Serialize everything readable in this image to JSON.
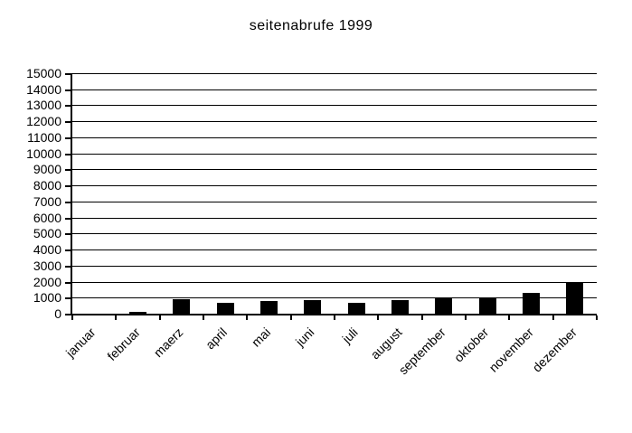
{
  "chart_data": {
    "type": "bar",
    "title": "seitenabrufe 1999",
    "categories": [
      "januar",
      "februar",
      "maerz",
      "april",
      "mai",
      "juni",
      "juli",
      "august",
      "september",
      "oktober",
      "november",
      "dezember"
    ],
    "values": [
      0,
      100,
      900,
      650,
      800,
      850,
      650,
      850,
      950,
      950,
      1300,
      1900
    ],
    "xlabel": "",
    "ylabel": "",
    "ylim": [
      0,
      15000
    ],
    "yticks": [
      0,
      1000,
      2000,
      3000,
      4000,
      5000,
      6000,
      7000,
      8000,
      9000,
      10000,
      11000,
      12000,
      13000,
      14000,
      15000
    ],
    "grid": true,
    "legend": false,
    "bar_color": "#000000",
    "axis_color": "#000000",
    "background": "#ffffff"
  }
}
